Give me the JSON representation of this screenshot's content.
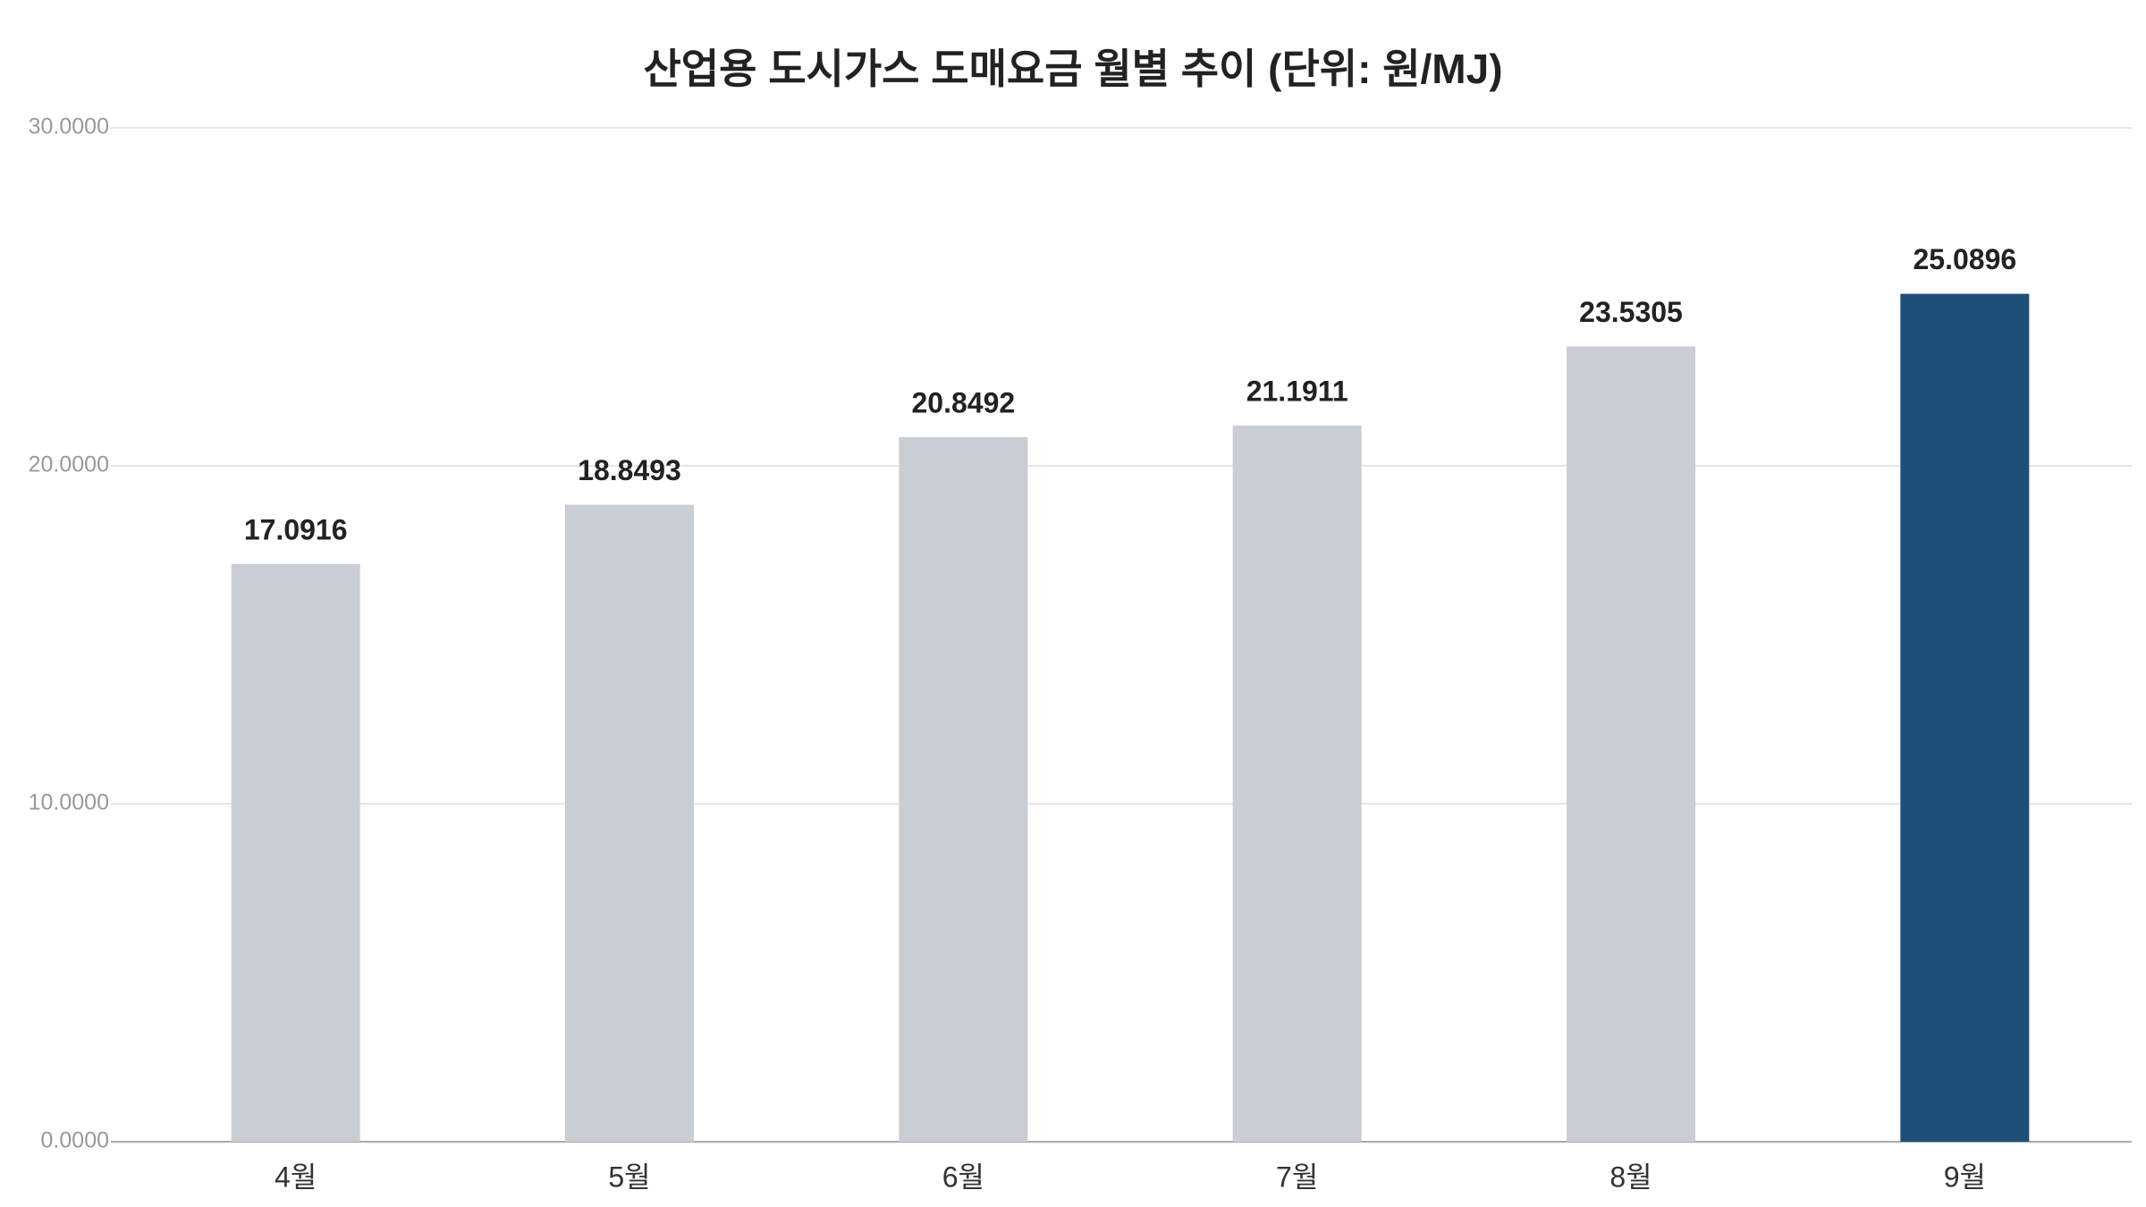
{
  "chart_data": {
    "type": "bar",
    "title": "산업용 도시가스 도매요금 월별 추이 (단위: 원/MJ)",
    "categories": [
      "4월",
      "5월",
      "6월",
      "7월",
      "8월",
      "9월"
    ],
    "values": [
      17.0916,
      18.8493,
      20.8492,
      21.1911,
      23.5305,
      25.0896
    ],
    "colors": [
      "#c9cdd4",
      "#c9cdd4",
      "#c9cdd4",
      "#c9cdd4",
      "#c9cdd4",
      "#1f4e79"
    ],
    "ylim": [
      0,
      30
    ],
    "yticks": [
      {
        "value": 0,
        "label": "0.0000"
      },
      {
        "value": 10,
        "label": "10.0000"
      },
      {
        "value": 20,
        "label": "20.0000"
      },
      {
        "value": 30,
        "label": "30.0000"
      }
    ],
    "grid": true
  }
}
